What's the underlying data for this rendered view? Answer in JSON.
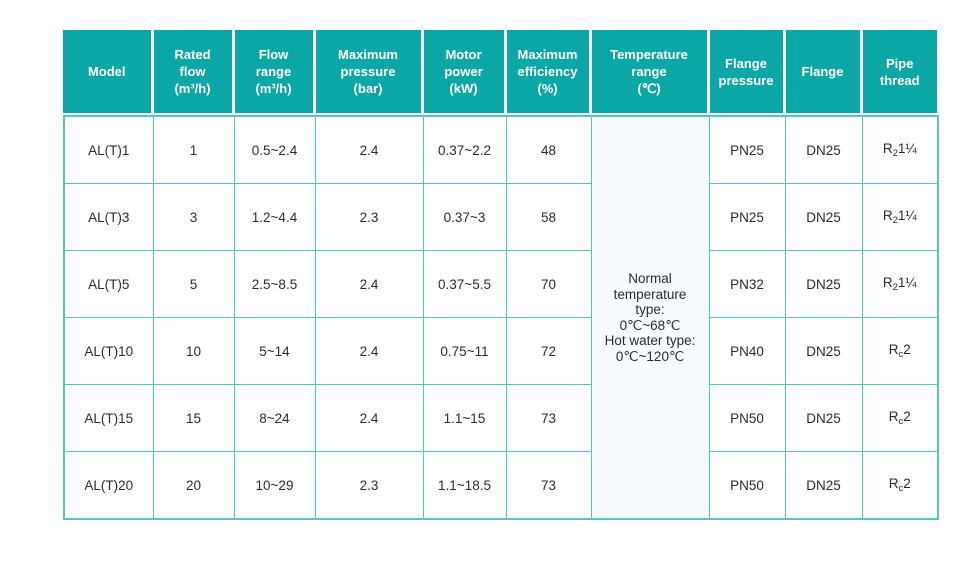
{
  "theme": {
    "header_bg": "#0ba7a7",
    "header_text": "#ffffff",
    "grid_color": "#53c5c3",
    "body_text": "#2b2b2b",
    "temp_cell_bg": "#f8fbfd",
    "page_bg": "#ffffff"
  },
  "table": {
    "columns": [
      {
        "id": "model",
        "lines": [
          "Model"
        ]
      },
      {
        "id": "rated_flow",
        "lines": [
          "Rated",
          "flow",
          "(m³/h)"
        ]
      },
      {
        "id": "flow_range",
        "lines": [
          "Flow",
          "range",
          "(m³/h)"
        ]
      },
      {
        "id": "max_pressure",
        "lines": [
          "Maximum",
          "pressure",
          "(bar)"
        ]
      },
      {
        "id": "motor_power",
        "lines": [
          "Motor",
          "power",
          "(kW)"
        ]
      },
      {
        "id": "max_efficiency",
        "lines": [
          "Maximum",
          "efficiency",
          "(%)"
        ]
      },
      {
        "id": "temp_range",
        "lines": [
          "Temperature",
          "range",
          "(℃)"
        ]
      },
      {
        "id": "flange_pressure",
        "lines": [
          "Flange",
          "pressure"
        ]
      },
      {
        "id": "flange",
        "lines": [
          "Flange"
        ]
      },
      {
        "id": "pipe_thread",
        "lines": [
          "Pipe",
          "thread"
        ]
      }
    ],
    "temperature_note": {
      "lines": [
        "Normal temperature type:",
        "0℃~68℃",
        "Hot water type:",
        "0℃~120℃"
      ]
    },
    "rows": [
      {
        "model": "AL(T)1",
        "rated_flow": "1",
        "flow_range": "0.5~2.4",
        "max_pressure": "2.4",
        "motor_power": "0.37~2.2",
        "max_efficiency": "48",
        "flange_pressure": "PN25",
        "flange": "DN25",
        "pipe_thread": {
          "base": "R",
          "sub": "2",
          "tail": "1¼"
        }
      },
      {
        "model": "AL(T)3",
        "rated_flow": "3",
        "flow_range": "1.2~4.4",
        "max_pressure": "2.3",
        "motor_power": "0.37~3",
        "max_efficiency": "58",
        "flange_pressure": "PN25",
        "flange": "DN25",
        "pipe_thread": {
          "base": "R",
          "sub": "2",
          "tail": "1¼"
        }
      },
      {
        "model": "AL(T)5",
        "rated_flow": "5",
        "flow_range": "2.5~8.5",
        "max_pressure": "2.4",
        "motor_power": "0.37~5.5",
        "max_efficiency": "70",
        "flange_pressure": "PN32",
        "flange": "DN25",
        "pipe_thread": {
          "base": "R",
          "sub": "2",
          "tail": "1¼"
        }
      },
      {
        "model": "AL(T)10",
        "rated_flow": "10",
        "flow_range": "5~14",
        "max_pressure": "2.4",
        "motor_power": "0.75~11",
        "max_efficiency": "72",
        "flange_pressure": "PN40",
        "flange": "DN25",
        "pipe_thread": {
          "base": "R",
          "sub": "c",
          "tail": "2"
        }
      },
      {
        "model": "AL(T)15",
        "rated_flow": "15",
        "flow_range": "8~24",
        "max_pressure": "2.4",
        "motor_power": "1.1~15",
        "max_efficiency": "73",
        "flange_pressure": "PN50",
        "flange": "DN25",
        "pipe_thread": {
          "base": "R",
          "sub": "c",
          "tail": "2"
        }
      },
      {
        "model": "AL(T)20",
        "rated_flow": "20",
        "flow_range": "10~29",
        "max_pressure": "2.3",
        "motor_power": "1.1~18.5",
        "max_efficiency": "73",
        "flange_pressure": "PN50",
        "flange": "DN25",
        "pipe_thread": {
          "base": "R",
          "sub": "c",
          "tail": "2"
        }
      }
    ]
  }
}
